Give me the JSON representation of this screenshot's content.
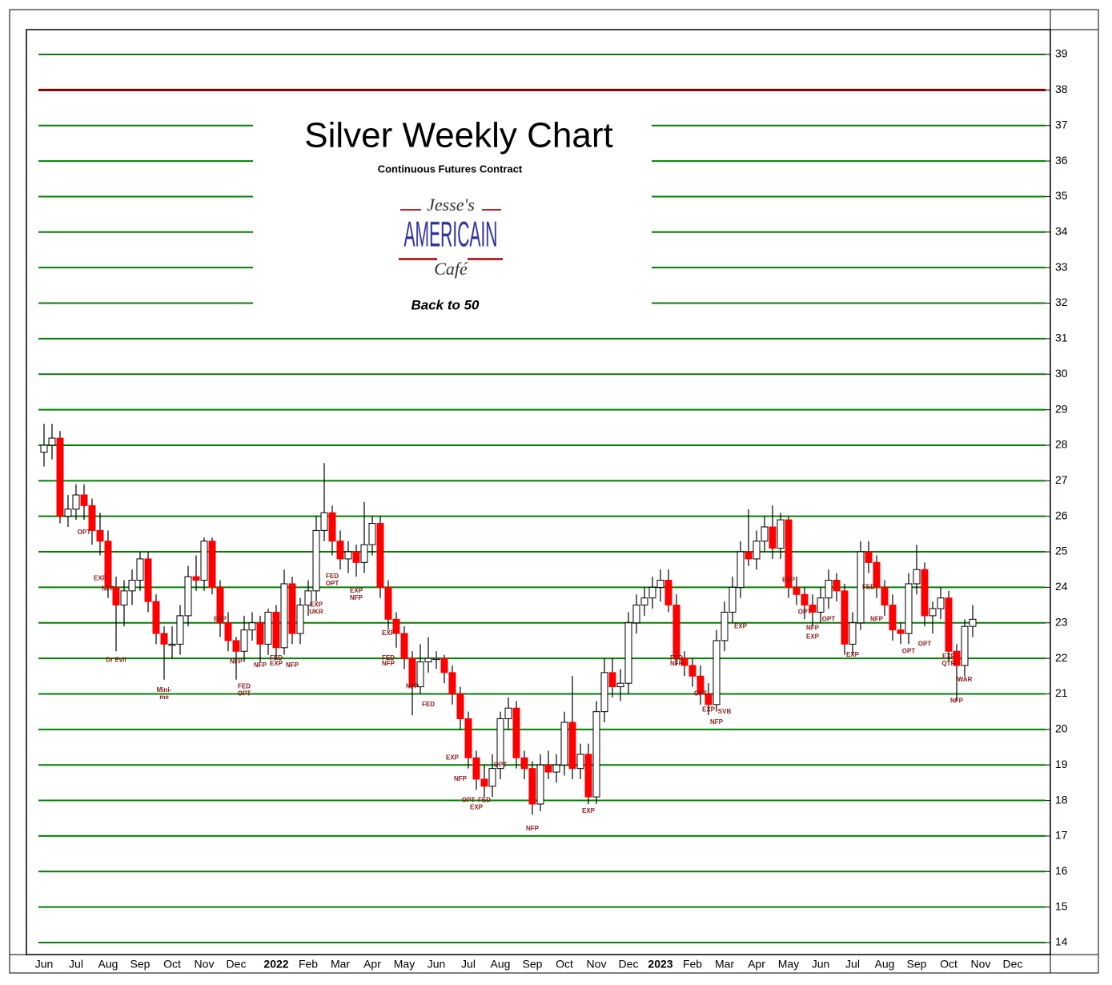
{
  "chart_data": {
    "type": "candlestick",
    "title": "Silver Weekly Chart",
    "subtitle": "Continuous Futures Contract",
    "logo_text": [
      "Jesse's",
      "AMERICAIN",
      "Café"
    ],
    "caption": "Back to 50",
    "up_color": "#ffffff",
    "down_color": "#ff0000",
    "grid": true,
    "grid_color": "#008000",
    "ylim": [
      14,
      39
    ],
    "yticks": [
      14,
      15,
      16,
      17,
      18,
      19,
      20,
      21,
      22,
      23,
      24,
      25,
      26,
      27,
      28,
      29,
      30,
      31,
      32,
      33,
      34,
      35,
      36,
      37,
      38,
      39
    ],
    "hlines": [
      {
        "value": 38,
        "color": "#800000"
      }
    ],
    "categories": [
      "Jun",
      null,
      null,
      null,
      "Jul",
      null,
      null,
      null,
      "Aug",
      null,
      null,
      null,
      "Sep",
      null,
      null,
      null,
      "Oct",
      null,
      null,
      null,
      "Nov",
      null,
      null,
      null,
      "Dec",
      null,
      null,
      null,
      null,
      "2022",
      null,
      null,
      null,
      "Feb",
      null,
      null,
      null,
      "Mar",
      null,
      null,
      null,
      "Apr",
      null,
      null,
      null,
      "May",
      null,
      null,
      null,
      "Jun",
      null,
      null,
      null,
      "Jul",
      null,
      null,
      null,
      "Aug",
      null,
      null,
      null,
      "Sep",
      null,
      null,
      null,
      "Oct",
      null,
      null,
      null,
      "Nov",
      null,
      null,
      null,
      "Dec",
      null,
      null,
      null,
      "2023",
      null,
      null,
      null,
      "Feb",
      null,
      null,
      null,
      "Mar",
      null,
      null,
      null,
      "Apr",
      null,
      null,
      null,
      "May",
      null,
      null,
      null,
      "Jun",
      null,
      null,
      null,
      "Jul",
      null,
      null,
      null,
      "Aug",
      null,
      null,
      null,
      "Sep",
      null,
      null,
      null,
      "Oct",
      null,
      null,
      null,
      "Nov",
      null,
      null,
      null,
      "Dec",
      null,
      null,
      null
    ],
    "ohlc": [
      [
        27.8,
        28.6,
        27.4,
        28.0
      ],
      [
        28.0,
        28.6,
        27.6,
        28.2
      ],
      [
        28.2,
        28.4,
        25.8,
        26.0
      ],
      [
        26.0,
        26.6,
        25.7,
        26.2
      ],
      [
        26.2,
        26.9,
        25.9,
        26.6
      ],
      [
        26.6,
        26.9,
        25.9,
        26.3
      ],
      [
        26.3,
        26.5,
        25.2,
        25.6
      ],
      [
        25.6,
        26.1,
        24.9,
        25.3
      ],
      [
        25.3,
        25.6,
        23.7,
        24.0
      ],
      [
        24.0,
        24.3,
        22.2,
        23.5
      ],
      [
        23.5,
        24.2,
        22.9,
        23.9
      ],
      [
        23.9,
        24.5,
        23.5,
        24.2
      ],
      [
        24.2,
        25.0,
        23.9,
        24.8
      ],
      [
        24.8,
        25.0,
        23.3,
        23.6
      ],
      [
        23.6,
        23.8,
        22.4,
        22.7
      ],
      [
        22.7,
        22.9,
        21.4,
        22.4
      ],
      [
        22.4,
        22.9,
        22.0,
        22.4
      ],
      [
        22.4,
        23.5,
        22.1,
        23.2
      ],
      [
        23.2,
        24.6,
        22.9,
        24.3
      ],
      [
        24.3,
        24.9,
        23.9,
        24.2
      ],
      [
        24.2,
        25.4,
        23.9,
        25.3
      ],
      [
        25.3,
        25.4,
        23.8,
        24.0
      ],
      [
        24.0,
        24.2,
        22.6,
        23.0
      ],
      [
        23.0,
        23.3,
        22.2,
        22.5
      ],
      [
        22.5,
        22.6,
        21.4,
        22.2
      ],
      [
        22.2,
        23.2,
        21.9,
        22.8
      ],
      [
        22.8,
        23.3,
        22.5,
        23.0
      ],
      [
        23.0,
        23.2,
        21.9,
        22.4
      ],
      [
        22.4,
        23.4,
        22.1,
        23.3
      ],
      [
        23.3,
        23.5,
        22.0,
        22.3
      ],
      [
        22.3,
        24.5,
        22.1,
        24.1
      ],
      [
        24.1,
        24.3,
        22.4,
        22.7
      ],
      [
        22.7,
        23.7,
        22.4,
        23.5
      ],
      [
        23.5,
        24.2,
        23.2,
        23.9
      ],
      [
        23.9,
        26.0,
        23.6,
        25.6
      ],
      [
        25.6,
        27.5,
        25.3,
        26.1
      ],
      [
        26.1,
        26.3,
        24.9,
        25.3
      ],
      [
        25.3,
        25.6,
        24.5,
        24.8
      ],
      [
        24.8,
        25.3,
        24.4,
        25.0
      ],
      [
        25.0,
        25.2,
        24.3,
        24.7
      ],
      [
        24.7,
        26.4,
        24.4,
        25.2
      ],
      [
        25.2,
        26.0,
        24.9,
        25.8
      ],
      [
        25.8,
        26.0,
        23.7,
        24.0
      ],
      [
        24.0,
        24.2,
        22.8,
        23.1
      ],
      [
        23.1,
        23.3,
        22.3,
        22.7
      ],
      [
        22.7,
        22.9,
        21.7,
        22.0
      ],
      [
        22.0,
        22.2,
        20.4,
        21.2
      ],
      [
        21.2,
        22.4,
        21.0,
        21.9
      ],
      [
        21.9,
        22.6,
        21.6,
        22.0
      ],
      [
        22.0,
        22.2,
        21.7,
        22.0
      ],
      [
        22.0,
        22.1,
        21.3,
        21.6
      ],
      [
        21.6,
        21.8,
        20.7,
        21.0
      ],
      [
        21.0,
        21.2,
        20.0,
        20.3
      ],
      [
        20.3,
        20.5,
        18.9,
        19.2
      ],
      [
        19.2,
        19.4,
        18.3,
        18.6
      ],
      [
        18.6,
        19.0,
        18.1,
        18.4
      ],
      [
        18.4,
        19.3,
        18.1,
        18.9
      ],
      [
        18.9,
        20.5,
        18.6,
        20.3
      ],
      [
        20.3,
        20.9,
        20.0,
        20.6
      ],
      [
        20.6,
        20.8,
        18.9,
        19.2
      ],
      [
        19.2,
        19.4,
        18.6,
        18.9
      ],
      [
        18.9,
        19.1,
        17.6,
        17.9
      ],
      [
        17.9,
        19.3,
        17.7,
        19.0
      ],
      [
        19.0,
        19.4,
        18.6,
        18.8
      ],
      [
        18.8,
        19.3,
        18.5,
        19.0
      ],
      [
        19.0,
        20.5,
        18.7,
        20.2
      ],
      [
        20.2,
        21.5,
        18.6,
        18.9
      ],
      [
        18.9,
        19.6,
        18.6,
        19.3
      ],
      [
        19.3,
        19.6,
        17.9,
        18.1
      ],
      [
        18.1,
        20.8,
        17.9,
        20.5
      ],
      [
        20.5,
        22.0,
        20.2,
        21.6
      ],
      [
        21.6,
        22.0,
        20.9,
        21.2
      ],
      [
        21.2,
        21.7,
        20.8,
        21.3
      ],
      [
        21.3,
        23.3,
        21.0,
        23.0
      ],
      [
        23.0,
        23.8,
        22.7,
        23.5
      ],
      [
        23.5,
        24.0,
        23.2,
        23.7
      ],
      [
        23.7,
        24.3,
        23.4,
        24.0
      ],
      [
        24.0,
        24.5,
        23.6,
        24.2
      ],
      [
        24.2,
        24.5,
        23.3,
        23.5
      ],
      [
        23.5,
        23.8,
        21.8,
        22.0
      ],
      [
        22.0,
        22.2,
        21.5,
        21.8
      ],
      [
        21.8,
        22.0,
        21.2,
        21.5
      ],
      [
        21.5,
        21.8,
        20.7,
        21.0
      ],
      [
        21.0,
        21.3,
        20.4,
        20.7
      ],
      [
        20.7,
        22.8,
        20.5,
        22.5
      ],
      [
        22.5,
        23.6,
        22.2,
        23.3
      ],
      [
        23.3,
        24.3,
        23.0,
        24.0
      ],
      [
        24.0,
        25.3,
        23.7,
        25.0
      ],
      [
        25.0,
        26.2,
        24.6,
        24.8
      ],
      [
        24.8,
        25.6,
        24.5,
        25.3
      ],
      [
        25.3,
        26.0,
        25.0,
        25.7
      ],
      [
        25.7,
        26.3,
        24.8,
        25.1
      ],
      [
        25.1,
        26.1,
        24.8,
        25.9
      ],
      [
        25.9,
        26.0,
        23.7,
        24.0
      ],
      [
        24.0,
        24.3,
        23.5,
        23.8
      ],
      [
        23.8,
        24.0,
        23.1,
        23.5
      ],
      [
        23.5,
        23.8,
        22.9,
        23.3
      ],
      [
        23.3,
        24.0,
        23.0,
        23.7
      ],
      [
        23.7,
        24.5,
        23.4,
        24.2
      ],
      [
        24.2,
        24.4,
        23.6,
        23.9
      ],
      [
        23.9,
        24.1,
        22.1,
        22.4
      ],
      [
        22.4,
        23.3,
        22.1,
        23.0
      ],
      [
        23.0,
        25.3,
        22.8,
        25.0
      ],
      [
        25.0,
        25.3,
        24.4,
        24.7
      ],
      [
        24.7,
        24.9,
        23.7,
        24.0
      ],
      [
        24.0,
        24.2,
        23.2,
        23.5
      ],
      [
        23.5,
        23.8,
        22.5,
        22.8
      ],
      [
        22.8,
        23.0,
        22.4,
        22.7
      ],
      [
        22.7,
        24.4,
        22.4,
        24.1
      ],
      [
        24.1,
        25.2,
        23.8,
        24.5
      ],
      [
        24.5,
        24.7,
        22.9,
        23.2
      ],
      [
        23.2,
        23.6,
        22.7,
        23.4
      ],
      [
        23.4,
        24.0,
        23.1,
        23.7
      ],
      [
        23.7,
        23.9,
        21.9,
        22.2
      ],
      [
        22.2,
        22.4,
        20.8,
        21.8
      ],
      [
        21.8,
        23.1,
        21.5,
        22.9
      ],
      [
        22.9,
        23.5,
        22.6,
        23.1
      ],
      null,
      null,
      null,
      null,
      null,
      null,
      null,
      null
    ],
    "annotation_color": "#8b1a1a",
    "annotations": [
      {
        "text": "Dr Evil",
        "x": 9,
        "y": 21.95
      },
      {
        "text": "Mini-",
        "x": 15,
        "y": 21.1
      },
      {
        "text": "me",
        "x": 15,
        "y": 20.9
      },
      {
        "text": "OPT",
        "x": 5,
        "y": 25.55
      },
      {
        "text": "EXP",
        "x": 7,
        "y": 24.25
      },
      {
        "text": "NFP",
        "x": 8,
        "y": 23.95
      },
      {
        "text": "EXP",
        "x": 22,
        "y": 23.1
      },
      {
        "text": "NFP",
        "x": 24,
        "y": 21.9
      },
      {
        "text": "FED",
        "x": 25,
        "y": 21.2
      },
      {
        "text": "OPT",
        "x": 25,
        "y": 21.0
      },
      {
        "text": "NFP",
        "x": 27,
        "y": 21.8
      },
      {
        "text": "FED",
        "x": 29,
        "y": 22.0
      },
      {
        "text": "EXP",
        "x": 29,
        "y": 21.85
      },
      {
        "text": "NFP",
        "x": 31,
        "y": 21.8
      },
      {
        "text": "EXP",
        "x": 34,
        "y": 23.5
      },
      {
        "text": "UKR",
        "x": 34,
        "y": 23.3
      },
      {
        "text": "FED",
        "x": 36,
        "y": 24.3
      },
      {
        "text": "OPT",
        "x": 36,
        "y": 24.1
      },
      {
        "text": "EXP",
        "x": 39,
        "y": 23.9
      },
      {
        "text": "NFP",
        "x": 39,
        "y": 23.7
      },
      {
        "text": "EXP",
        "x": 43,
        "y": 22.7
      },
      {
        "text": "FED",
        "x": 43,
        "y": 22.0
      },
      {
        "text": "NFP",
        "x": 43,
        "y": 21.85
      },
      {
        "text": "NFP",
        "x": 46,
        "y": 21.2
      },
      {
        "text": "FED",
        "x": 48,
        "y": 20.7
      },
      {
        "text": "EXP",
        "x": 51,
        "y": 19.2
      },
      {
        "text": "NFP",
        "x": 52,
        "y": 18.6
      },
      {
        "text": "OPT",
        "x": 53,
        "y": 18.0
      },
      {
        "text": "EXP",
        "x": 54,
        "y": 17.8
      },
      {
        "text": "FED",
        "x": 55,
        "y": 18.0
      },
      {
        "text": "OPT",
        "x": 57,
        "y": 19.0
      },
      {
        "text": "NFP",
        "x": 61,
        "y": 17.2
      },
      {
        "text": "EXP",
        "x": 68,
        "y": 17.7
      },
      {
        "text": "FED",
        "x": 79,
        "y": 22.0
      },
      {
        "text": "NFP",
        "x": 79,
        "y": 21.85
      },
      {
        "text": "OPT",
        "x": 82,
        "y": 21.0
      },
      {
        "text": "EXP",
        "x": 83,
        "y": 20.55
      },
      {
        "text": "NFP",
        "x": 84,
        "y": 20.2
      },
      {
        "text": "SVB",
        "x": 85,
        "y": 20.5
      },
      {
        "text": "EXP",
        "x": 87,
        "y": 22.9
      },
      {
        "text": "EXP",
        "x": 93,
        "y": 24.2
      },
      {
        "text": "OPT",
        "x": 95,
        "y": 23.3
      },
      {
        "text": "NFP",
        "x": 96,
        "y": 22.85
      },
      {
        "text": "EXP",
        "x": 96,
        "y": 22.6
      },
      {
        "text": "OPT",
        "x": 98,
        "y": 23.1
      },
      {
        "text": "EXP",
        "x": 101,
        "y": 22.1
      },
      {
        "text": "FED",
        "x": 103,
        "y": 24.0
      },
      {
        "text": "NFP",
        "x": 104,
        "y": 23.1
      },
      {
        "text": "OPT",
        "x": 108,
        "y": 22.2
      },
      {
        "text": "OPT",
        "x": 110,
        "y": 22.4
      },
      {
        "text": "EXP",
        "x": 113,
        "y": 22.05
      },
      {
        "text": "QTR",
        "x": 113,
        "y": 21.85
      },
      {
        "text": "WAR",
        "x": 115,
        "y": 21.4
      },
      {
        "text": "NFP",
        "x": 114,
        "y": 20.8
      }
    ]
  }
}
